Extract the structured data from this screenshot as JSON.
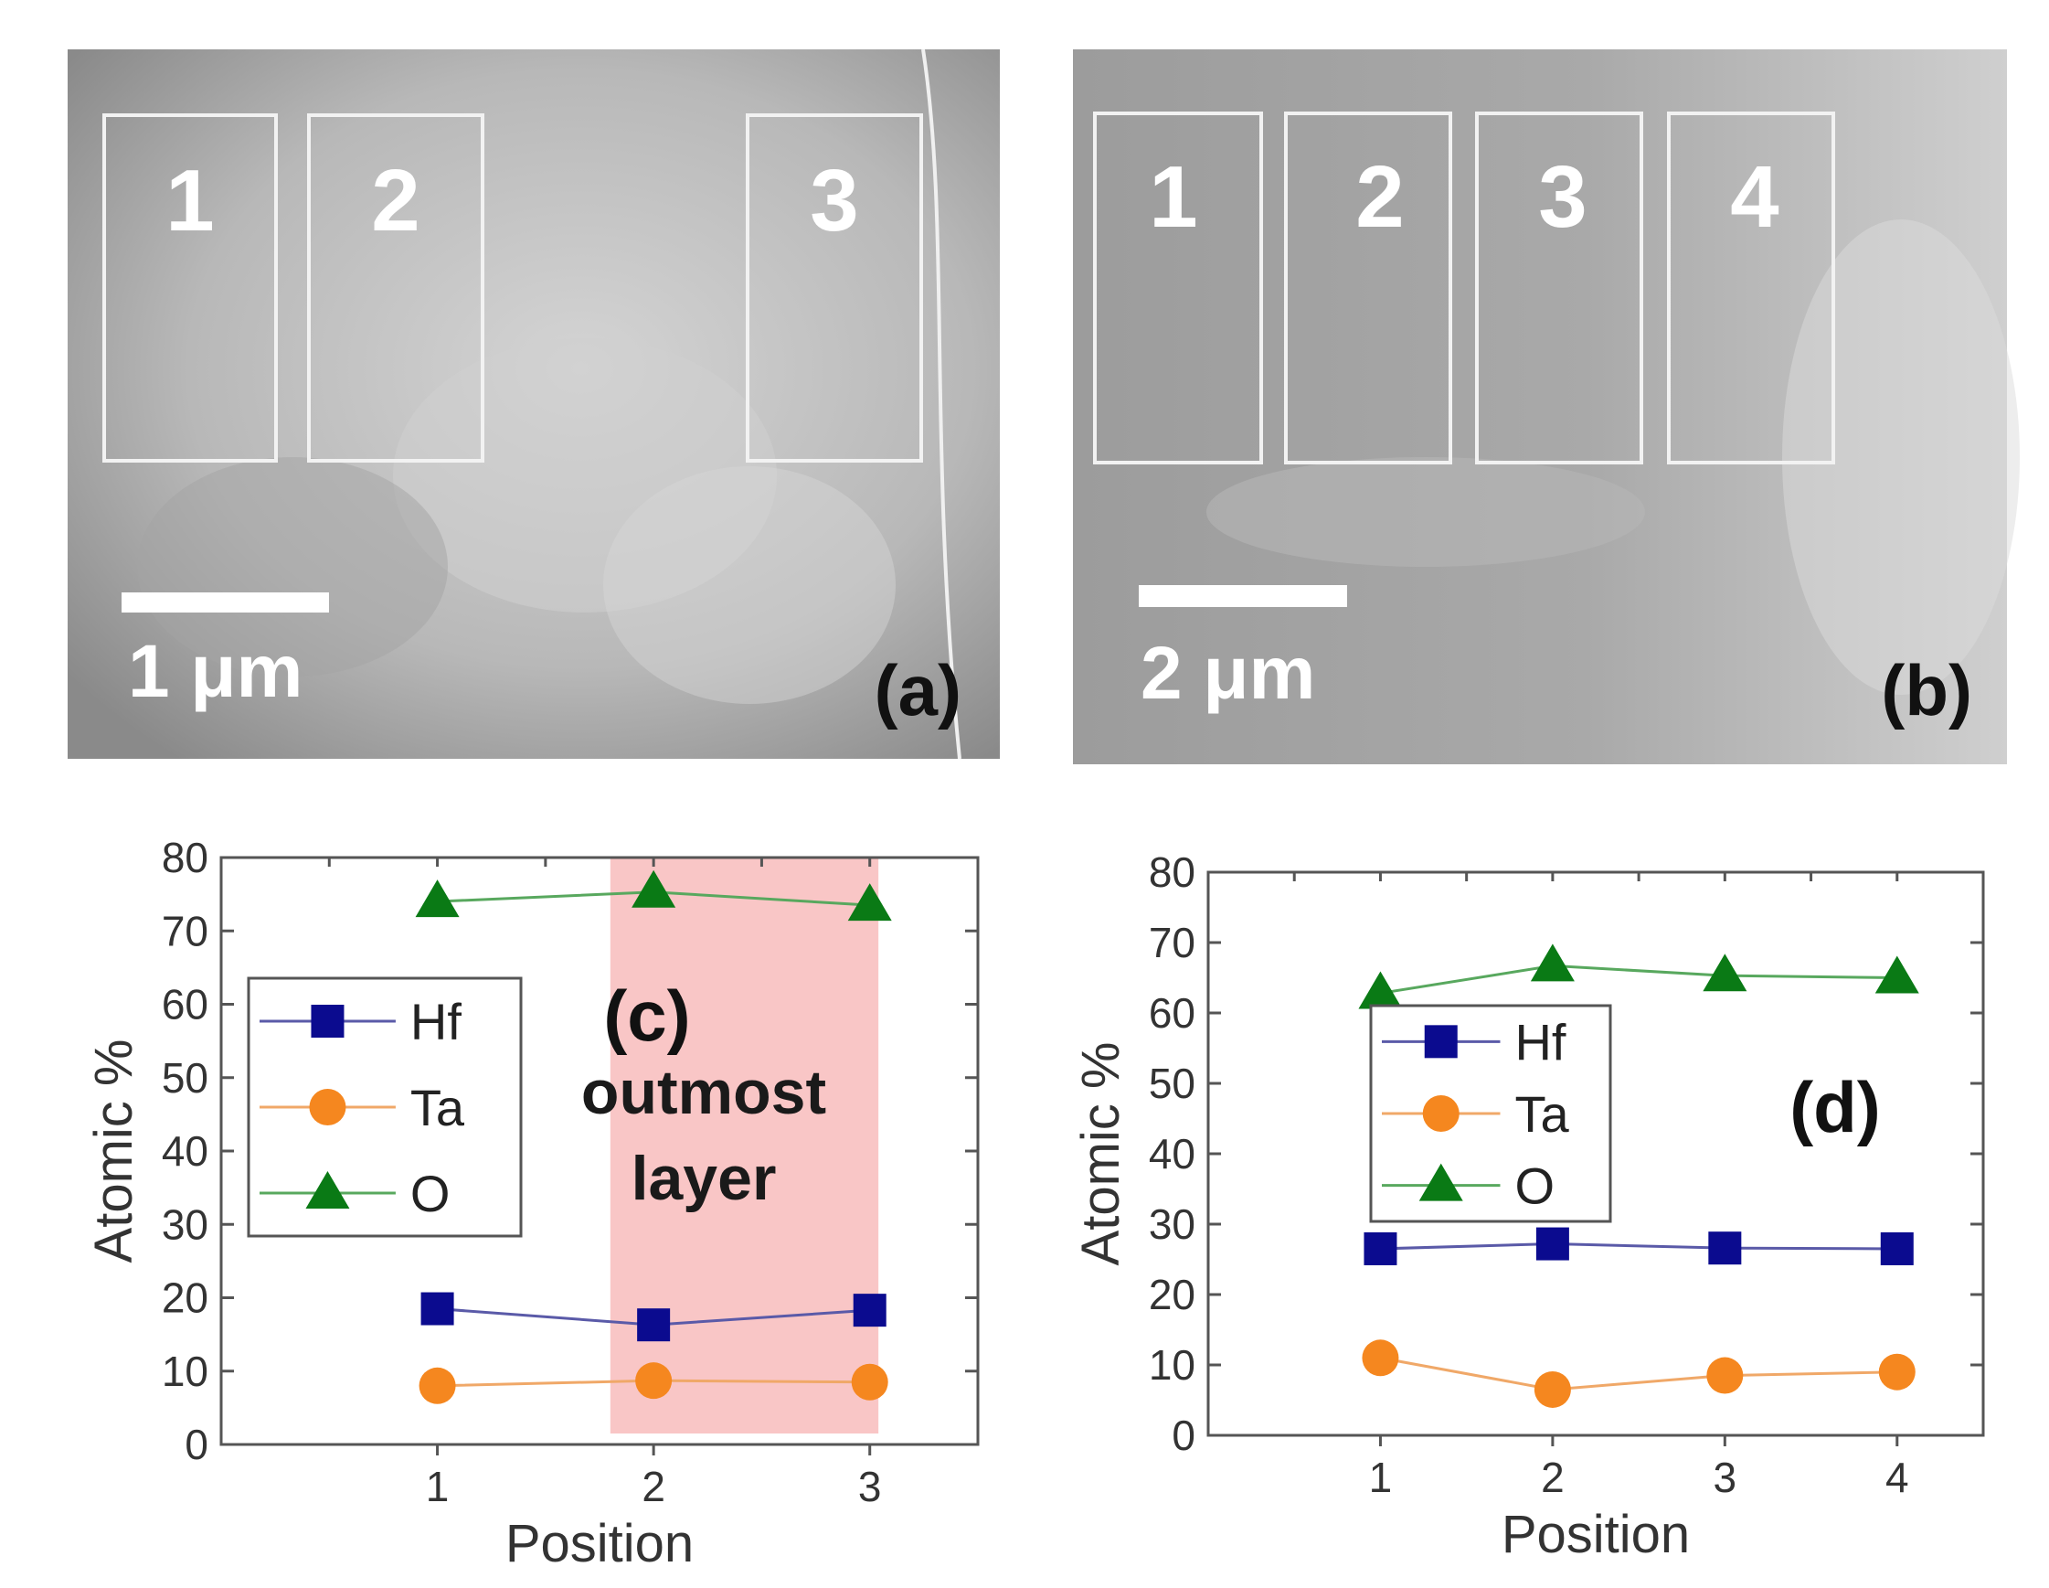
{
  "panel_a": {
    "label": "(a)",
    "scale_bar_text": "1 μm",
    "regions": [
      "1",
      "2",
      "3"
    ]
  },
  "panel_b": {
    "label": "(b)",
    "scale_bar_text": "2 μm",
    "regions": [
      "1",
      "2",
      "3",
      "4"
    ]
  },
  "colors": {
    "Hf": "#0b0b8f",
    "Ta": "#f5871f",
    "O": "#0a7a15",
    "Hf_line": "#5a5aa8",
    "Ta_line": "#f0a868",
    "O_line": "#58a85e",
    "highlight": "#f9c6c6"
  },
  "chart_data": [
    {
      "id": "c",
      "type": "line",
      "panel_label": "(c)",
      "annotation": [
        "outmost",
        "layer"
      ],
      "highlight_x_range": [
        1.8,
        3.04
      ],
      "xlabel": "Position",
      "ylabel": "Atomic %",
      "x": [
        1,
        2,
        3
      ],
      "xticks": [
        "1",
        "2",
        "3"
      ],
      "xlim": [
        0.0,
        3.5
      ],
      "ylim": [
        0,
        80
      ],
      "yticks": [
        0,
        10,
        20,
        30,
        40,
        50,
        60,
        70,
        80
      ],
      "legend": [
        "Hf",
        "Ta",
        "O"
      ],
      "series": [
        {
          "name": "Hf",
          "marker": "square",
          "values": [
            18.5,
            16.3,
            18.3
          ]
        },
        {
          "name": "Ta",
          "marker": "circle",
          "values": [
            8.0,
            8.7,
            8.5
          ]
        },
        {
          "name": "O",
          "marker": "triangle",
          "values": [
            74.0,
            75.3,
            73.5
          ]
        }
      ]
    },
    {
      "id": "d",
      "type": "line",
      "panel_label": "(d)",
      "xlabel": "Position",
      "ylabel": "Atomic %",
      "x": [
        1,
        2,
        3,
        4
      ],
      "xticks": [
        "1",
        "2",
        "3",
        "4"
      ],
      "xlim": [
        0.0,
        4.5
      ],
      "ylim": [
        0,
        80
      ],
      "yticks": [
        0,
        10,
        20,
        30,
        40,
        50,
        60,
        70,
        80
      ],
      "legend": [
        "Hf",
        "Ta",
        "O"
      ],
      "series": [
        {
          "name": "Hf",
          "marker": "square",
          "values": [
            26.5,
            27.2,
            26.6,
            26.5
          ]
        },
        {
          "name": "Ta",
          "marker": "circle",
          "values": [
            11.0,
            6.5,
            8.5,
            9.0
          ]
        },
        {
          "name": "O",
          "marker": "triangle",
          "values": [
            62.8,
            66.7,
            65.3,
            65.0
          ]
        }
      ]
    }
  ]
}
